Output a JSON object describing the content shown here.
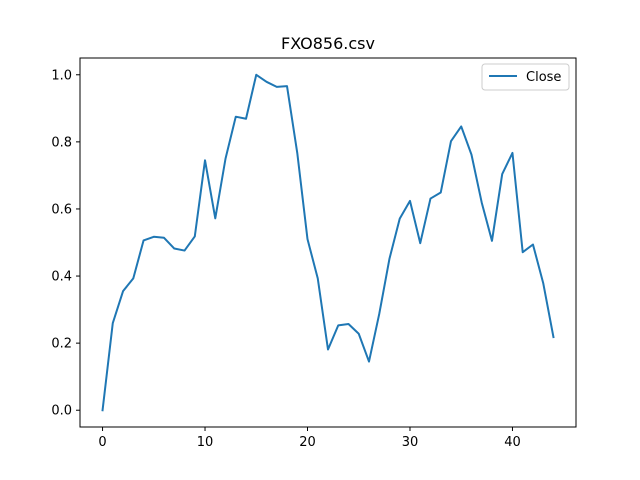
{
  "chart_data": {
    "type": "line",
    "title": "FXO856.csv",
    "xlabel": "",
    "ylabel": "",
    "xlim": [
      -2.2,
      46.2
    ],
    "ylim": [
      -0.05,
      1.05
    ],
    "x_ticks": [
      0,
      10,
      20,
      30,
      40
    ],
    "y_ticks": [
      0.0,
      0.2,
      0.4,
      0.6,
      0.8,
      1.0
    ],
    "y_tick_labels": [
      "0.0",
      "0.2",
      "0.4",
      "0.6",
      "0.8",
      "1.0"
    ],
    "grid": false,
    "legend_position": "top-right",
    "series": [
      {
        "name": "Close",
        "color": "#1f77b4",
        "x": [
          0,
          1,
          2,
          3,
          4,
          5,
          6,
          7,
          8,
          9,
          10,
          11,
          12,
          13,
          14,
          15,
          16,
          17,
          18,
          19,
          20,
          21,
          22,
          23,
          24,
          25,
          26,
          27,
          28,
          29,
          30,
          31,
          32,
          33,
          34,
          35,
          36,
          37,
          38,
          39,
          40,
          41,
          42,
          43,
          44
        ],
        "y": [
          0.0,
          0.26,
          0.355,
          0.393,
          0.506,
          0.517,
          0.514,
          0.482,
          0.476,
          0.518,
          0.745,
          0.572,
          0.75,
          0.875,
          0.869,
          1.0,
          0.979,
          0.964,
          0.966,
          0.767,
          0.51,
          0.393,
          0.181,
          0.253,
          0.257,
          0.228,
          0.145,
          0.287,
          0.452,
          0.571,
          0.624,
          0.498,
          0.631,
          0.649,
          0.802,
          0.846,
          0.762,
          0.619,
          0.505,
          0.704,
          0.767,
          0.471,
          0.494,
          0.379,
          0.218
        ]
      }
    ]
  }
}
